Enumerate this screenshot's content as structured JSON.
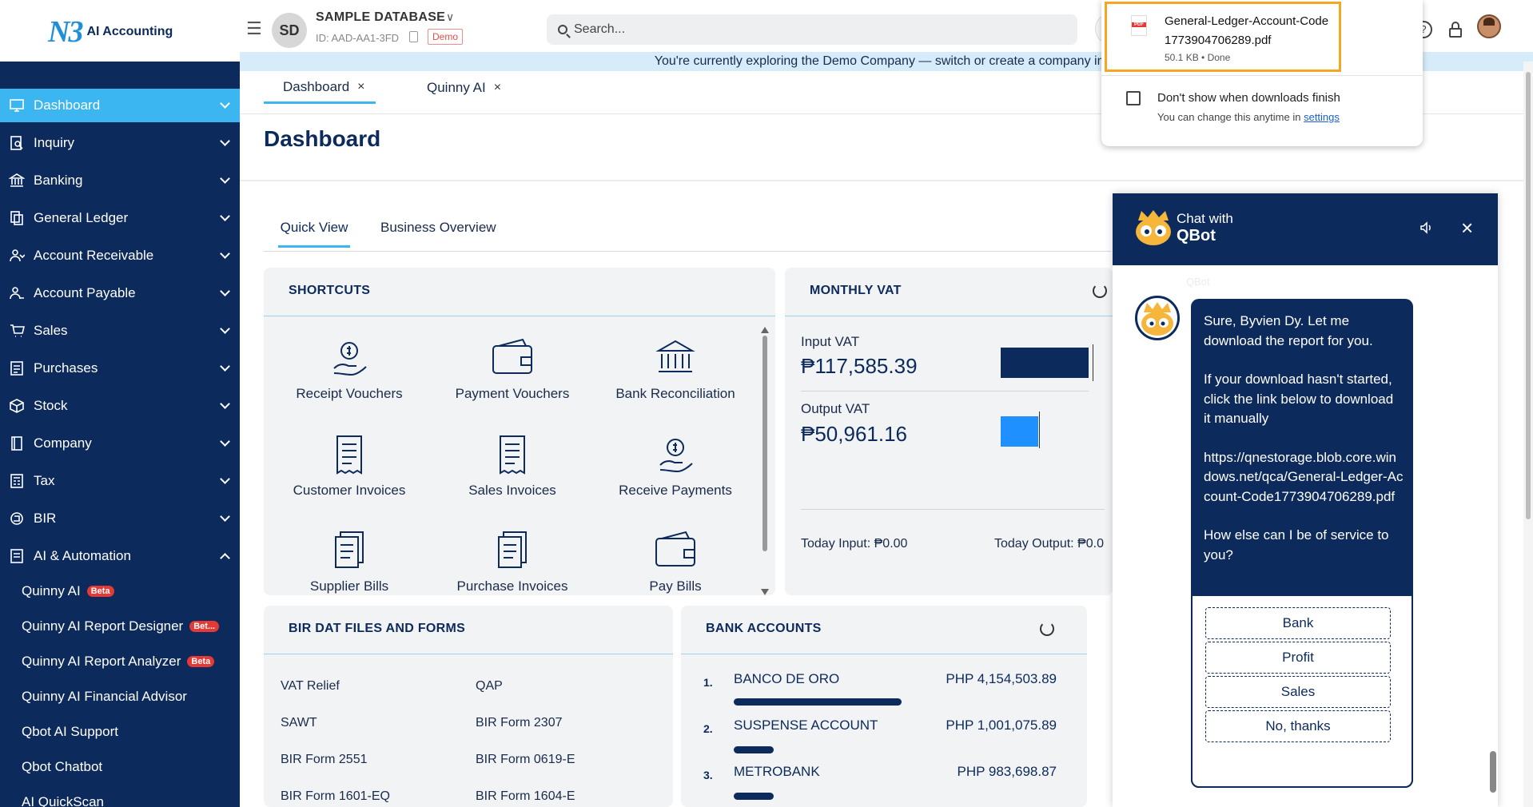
{
  "app": {
    "logo_mark": "N3",
    "logo_text": "AI Accounting"
  },
  "header": {
    "company_initials": "SD",
    "company_name": "SAMPLE DATABASE",
    "company_id": "ID: AAD-AA1-3FD",
    "demo_badge": "Demo",
    "search_placeholder": "Search..."
  },
  "banner": {
    "text": "You're currently exploring the Demo Company — switch or create a company in M"
  },
  "sidebar": {
    "items": [
      {
        "label": "Dashboard",
        "icon": "monitor-icon",
        "active": true
      },
      {
        "label": "Inquiry",
        "icon": "inquiry-icon"
      },
      {
        "label": "Banking",
        "icon": "bank-icon"
      },
      {
        "label": "General Ledger",
        "icon": "ledger-icon"
      },
      {
        "label": "Account Receivable",
        "icon": "receivable-icon"
      },
      {
        "label": "Account Payable",
        "icon": "payable-icon"
      },
      {
        "label": "Sales",
        "icon": "sales-icon"
      },
      {
        "label": "Purchases",
        "icon": "purchases-icon"
      },
      {
        "label": "Stock",
        "icon": "box-icon"
      },
      {
        "label": "Company",
        "icon": "company-icon"
      },
      {
        "label": "Tax",
        "icon": "tax-icon"
      },
      {
        "label": "BIR",
        "icon": "bir-icon"
      },
      {
        "label": "AI & Automation",
        "icon": "ai-icon",
        "expanded": true
      }
    ],
    "sub_items": [
      {
        "label": "Quinny AI",
        "badge": "Beta"
      },
      {
        "label": "Quinny AI Report Designer",
        "badge": "Bet..."
      },
      {
        "label": "Quinny AI Report Analyzer",
        "badge": "Beta"
      },
      {
        "label": "Quinny AI Financial Advisor"
      },
      {
        "label": "Qbot AI Support"
      },
      {
        "label": "Qbot Chatbot"
      },
      {
        "label": "AI QuickScan"
      }
    ]
  },
  "tabs": [
    {
      "label": "Dashboard",
      "close": "×"
    },
    {
      "label": "Quinny AI",
      "close": "×"
    }
  ],
  "page": {
    "title": "Dashboard"
  },
  "subtabs": {
    "quick_view": "Quick View",
    "business_overview": "Business Overview"
  },
  "shortcuts": {
    "title": "SHORTCUTS",
    "items": [
      {
        "label": "Receipt Vouchers",
        "icon": "money-hand-icon"
      },
      {
        "label": "Payment Vouchers",
        "icon": "wallet-icon"
      },
      {
        "label": "Bank Reconciliation",
        "icon": "bank-icon"
      },
      {
        "label": "Customer Invoices",
        "icon": "invoice-icon"
      },
      {
        "label": "Sales Invoices",
        "icon": "invoice-icon"
      },
      {
        "label": "Receive Payments",
        "icon": "money-hand-icon"
      },
      {
        "label": "Supplier Bills",
        "icon": "bills-icon"
      },
      {
        "label": "Purchase Invoices",
        "icon": "bills-icon"
      },
      {
        "label": "Pay Bills",
        "icon": "wallet-icon"
      }
    ]
  },
  "monthly_vat": {
    "title": "MONTHLY VAT",
    "input_label": "Input VAT",
    "input_value": "₱117,585.39",
    "output_label": "Output VAT",
    "output_value": "₱50,961.16",
    "today_input": "Today Input: ₱0.00",
    "today_output": "Today Output: ₱0.0",
    "colors": {
      "input": "#0c2a5b",
      "output": "#1e90ff"
    }
  },
  "bir": {
    "title": "BIR DAT FILES AND FORMS",
    "links": [
      "VAT Relief",
      "QAP",
      "SAWT",
      "BIR Form 2307",
      "BIR Form 2551",
      "BIR Form 0619-E",
      "BIR Form 1601-EQ",
      "BIR Form 1604-E"
    ]
  },
  "bank_accounts": {
    "title": "BANK ACCOUNTS",
    "rows": [
      {
        "num": "1.",
        "name": "BANCO DE ORO",
        "amount": "PHP 4,154,503.89",
        "share": 1.0
      },
      {
        "num": "2.",
        "name": "SUSPENSE ACCOUNT",
        "amount": "PHP 1,001,075.89",
        "share": 0.24
      },
      {
        "num": "3.",
        "name": "METROBANK",
        "amount": "PHP 983,698.87",
        "share": 0.24
      }
    ]
  },
  "download": {
    "filename": "General-Ledger-Account-Code1773904706289.pdf",
    "meta": "50.1 KB • Done",
    "dont_show": "Don't show when downloads finish",
    "note": "You can change this anytime in ",
    "settings_link": "settings"
  },
  "chat": {
    "chat_with": "Chat with",
    "bot_name": "QBot",
    "ghost_label": "QBot",
    "close": "×",
    "message": {
      "p1": "Sure, Byvien Dy. Let me download the report for you.",
      "p2": "If your download hasn't started, click the link below to download it manually",
      "p3": "https://qnestorage.blob.core.windows.net/qca/General-Ledger-Account-Code1773904706289.pdf",
      "p4": "How else can I be of service to you?"
    },
    "options": [
      "Bank",
      "Profit",
      "Sales",
      "No, thanks"
    ]
  }
}
